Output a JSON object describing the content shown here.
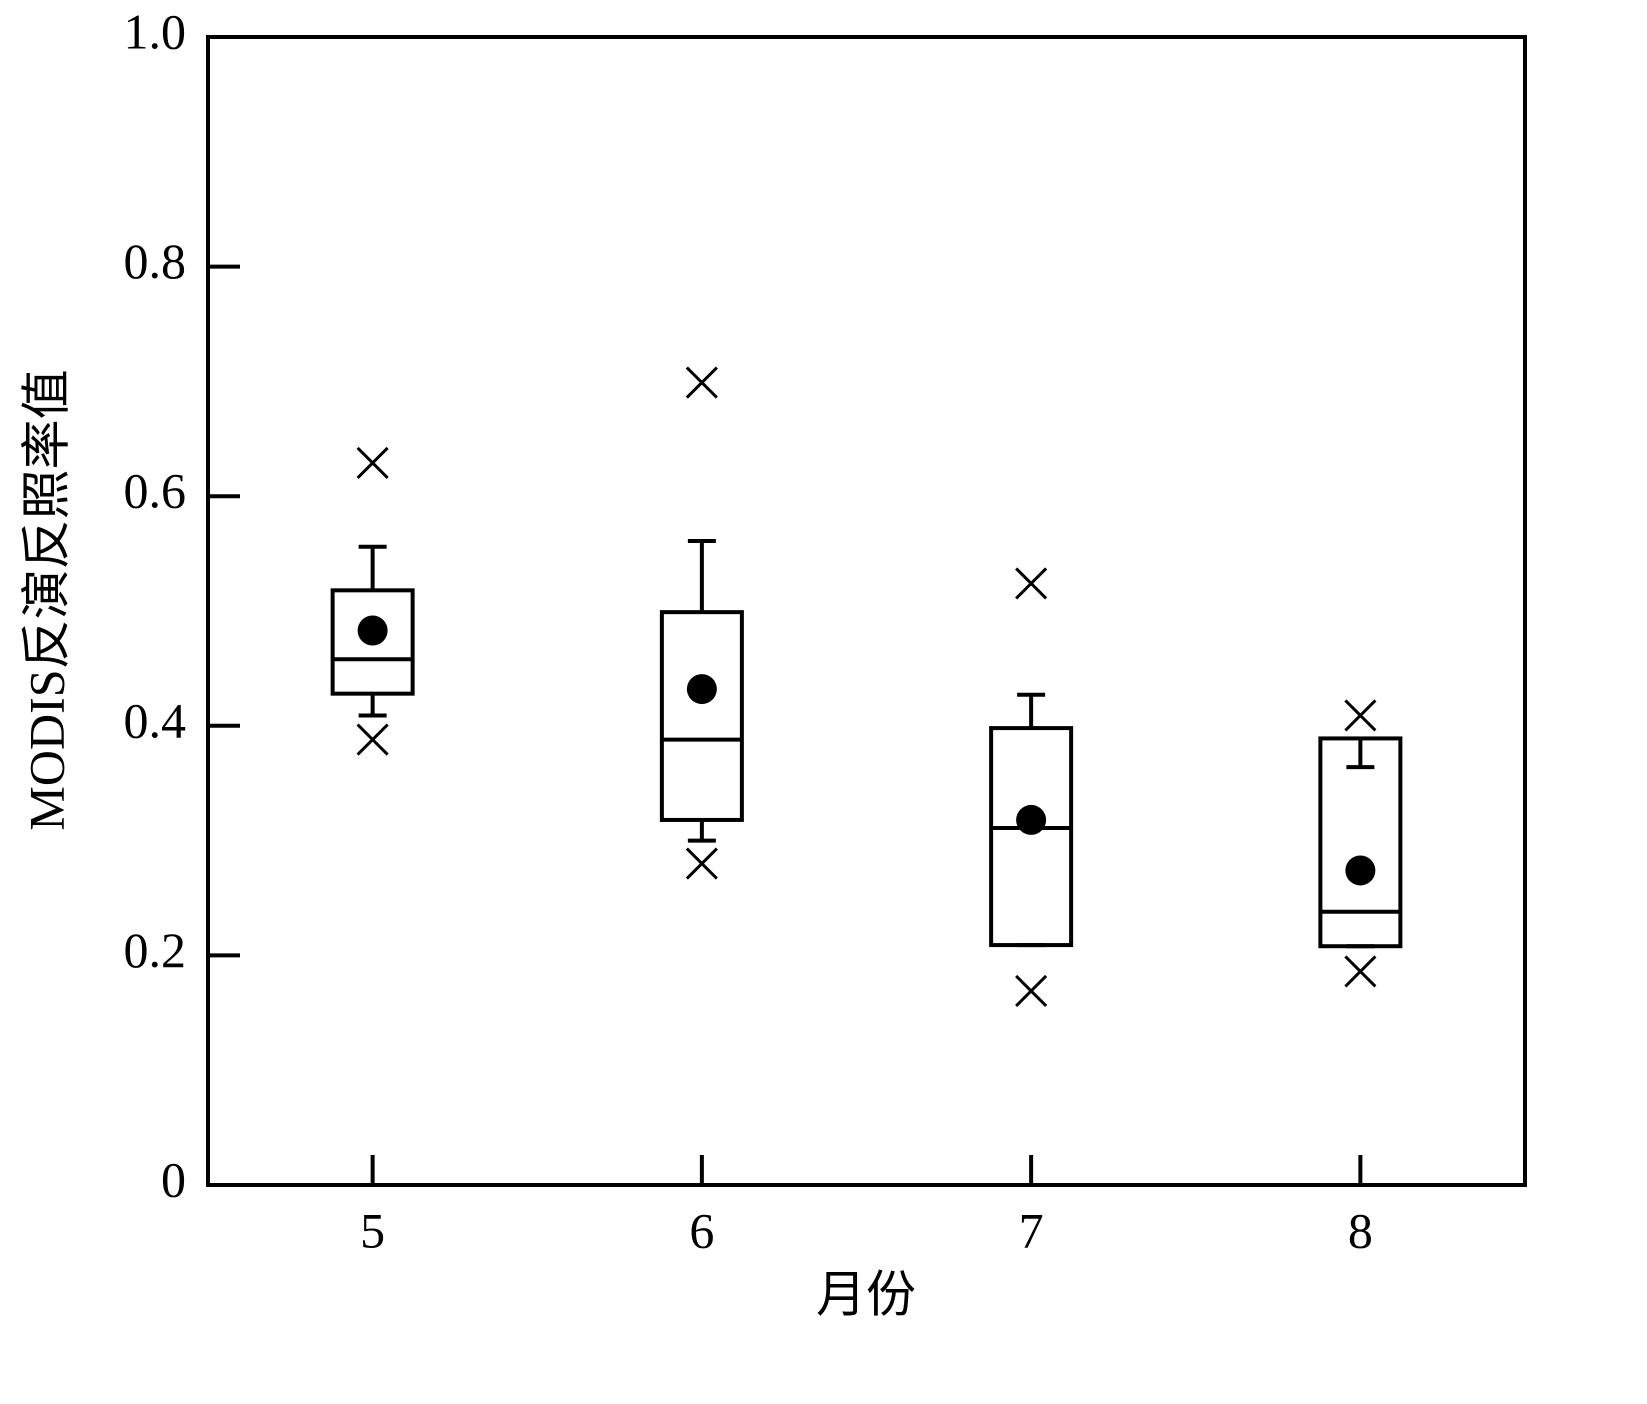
{
  "chart_data": {
    "type": "box",
    "x_label": "月份",
    "y_label": "MODIS反演反照率值",
    "categories": [
      "5",
      "6",
      "7",
      "8"
    ],
    "series": [
      {
        "color": "#000000",
        "whisker_high": [
          0.556,
          0.561,
          0.427,
          0.364
        ],
        "q3": [
          0.518,
          0.499,
          0.398,
          0.389
        ],
        "median": [
          0.458,
          0.388,
          0.311,
          0.238
        ],
        "q1": [
          0.428,
          0.318,
          0.209,
          0.208
        ],
        "whisker_low": [
          0.409,
          0.3,
          0.209,
          0.208
        ],
        "mean": [
          0.483,
          0.432,
          0.318,
          0.274
        ],
        "max": [
          0.629,
          0.699,
          0.524,
          0.409
        ],
        "min": [
          0.388,
          0.28,
          0.169,
          0.186
        ]
      }
    ],
    "ylim": [
      0,
      1
    ],
    "yticks": [
      0,
      0.2,
      0.4,
      0.6,
      0.8,
      {
        "value": 1,
        "label": "1.0"
      }
    ]
  }
}
